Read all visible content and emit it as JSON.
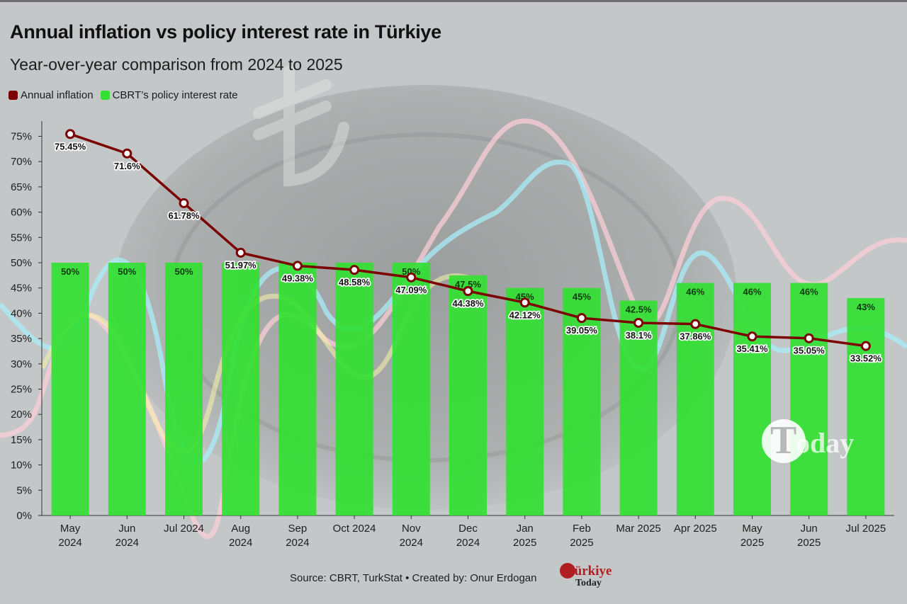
{
  "title": "Annual inflation vs policy interest rate in Türkiye",
  "subtitle": "Year-over-year comparison from 2024 to 2025",
  "legend": {
    "inflation": "Annual inflation",
    "rate": "CBRT’s policy interest rate"
  },
  "footer": "Source: CBRT, TurkStat • Created by: Onur Erdogan",
  "brand": {
    "line1": "Türkiye",
    "line2": "Today"
  },
  "watermark": {
    "first": "T",
    "rest": "oday"
  },
  "colors": {
    "inflation": "#7b0000",
    "rate": "#33e033",
    "rate_label": "#0d3a0d",
    "background": "#c4c7c7"
  },
  "chart_data": {
    "type": "bar",
    "categories": [
      "May 2024",
      "Jun 2024",
      "Jul 2024",
      "Aug 2024",
      "Sep 2024",
      "Oct 2024",
      "Nov 2024",
      "Dec 2024",
      "Jan 2025",
      "Feb 2025",
      "Mar 2025",
      "Apr 2025",
      "May 2025",
      "Jun 2025",
      "Jul 2025"
    ],
    "tick_labels": [
      [
        "May",
        "2024"
      ],
      [
        "Jun",
        "2024"
      ],
      [
        "Jul 2024"
      ],
      [
        "Aug",
        "2024"
      ],
      [
        "Sep",
        "2024"
      ],
      [
        "Oct 2024"
      ],
      [
        "Nov",
        "2024"
      ],
      [
        "Dec",
        "2024"
      ],
      [
        "Jan",
        "2025"
      ],
      [
        "Feb",
        "2025"
      ],
      [
        "Mar 2025"
      ],
      [
        "Apr 2025"
      ],
      [
        "May",
        "2025"
      ],
      [
        "Jun",
        "2025"
      ],
      [
        "Jul 2025"
      ]
    ],
    "series": [
      {
        "name": "CBRT’s policy interest rate",
        "type": "bar",
        "values": [
          50,
          50,
          50,
          50,
          50,
          50,
          50,
          47.5,
          45,
          45,
          42.5,
          46,
          46,
          46,
          43
        ],
        "labels": [
          "50%",
          "50%",
          "50%",
          "",
          "",
          "",
          "50%",
          "47.5%",
          "45%",
          "45%",
          "42.5%",
          "46%",
          "46%",
          "46%",
          "43%"
        ]
      },
      {
        "name": "Annual inflation",
        "type": "line",
        "values": [
          75.45,
          71.6,
          61.78,
          51.97,
          49.38,
          48.58,
          47.09,
          44.38,
          42.12,
          39.05,
          38.1,
          37.86,
          35.41,
          35.05,
          33.52
        ],
        "labels": [
          "75.45%",
          "71.6%",
          "61.78%",
          "51.97%",
          "49.38%",
          "48.58%",
          "47.09%",
          "44.38%",
          "42.12%",
          "39.05%",
          "38.1%",
          "37.86%",
          "35.41%",
          "35.05%",
          "33.52%"
        ]
      }
    ],
    "yticks": [
      "0%",
      "5%",
      "10%",
      "15%",
      "20%",
      "25%",
      "30%",
      "35%",
      "40%",
      "45%",
      "50%",
      "55%",
      "60%",
      "65%",
      "70%",
      "75%"
    ],
    "ylim": [
      0,
      78
    ],
    "grid": false,
    "legend_position": "top-left"
  }
}
